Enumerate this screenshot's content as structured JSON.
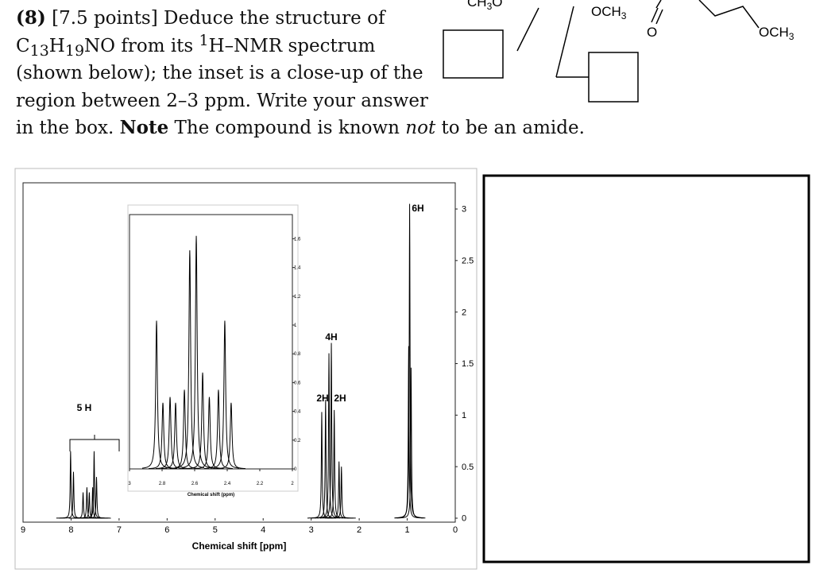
{
  "question": {
    "lines": [
      [
        {
          "t": "(8)",
          "style": "bold"
        },
        {
          "t": " [7.5 points] Deduce the structure of"
        }
      ],
      [
        {
          "t": "C"
        },
        {
          "t": "13",
          "style": "sub"
        },
        {
          "t": "H"
        },
        {
          "t": "19",
          "style": "sub"
        },
        {
          "t": "NO from its "
        },
        {
          "t": "1",
          "style": "sup"
        },
        {
          "t": "H–NMR spectrum"
        }
      ],
      [
        {
          "t": "(shown below); the inset is a close-up of the"
        }
      ],
      [
        {
          "t": "region between 2–3 ppm. Write your answer"
        }
      ],
      [
        {
          "t": "in the box. "
        },
        {
          "t": "Note",
          "style": "bold"
        },
        {
          "t": " The compound is known "
        },
        {
          "t": "not",
          "style": "italic"
        },
        {
          "t": " to be an amide."
        }
      ]
    ]
  },
  "structure_labels": [
    {
      "t": "CH",
      "sub": "3",
      "after": "O"
    },
    {
      "t": "OCH",
      "sub": "3",
      "after": ""
    },
    {
      "t": "O",
      "sub": "",
      "after": ""
    },
    {
      "t": "OCH",
      "sub": "3",
      "after": ""
    }
  ],
  "chart_data": {
    "type": "spectrum",
    "xlabel": "Chemical shift [ppm]",
    "xlim": [
      9,
      0
    ],
    "xticks": [
      9,
      8,
      7,
      6,
      5,
      4,
      3,
      2,
      1,
      0
    ],
    "ylim": [
      0,
      3.3
    ],
    "yticks": [
      0,
      0.5,
      1,
      1.5,
      2,
      2.5,
      3
    ],
    "annotations": [
      "5 H",
      "4H",
      "2H",
      "2H",
      "6H"
    ],
    "peaks": {
      "x": [
        8.01,
        7.95,
        7.75,
        7.67,
        7.62,
        7.55,
        7.52,
        7.47,
        2.78,
        2.7,
        2.63,
        2.58,
        2.52,
        2.42,
        2.37,
        0.97,
        0.95,
        0.92
      ],
      "values": [
        0.65,
        0.45,
        0.25,
        0.3,
        0.25,
        0.3,
        0.65,
        0.4,
        1.03,
        1.15,
        1.6,
        1.7,
        1.05,
        0.55,
        0.5,
        1.67,
        3.05,
        1.46
      ]
    },
    "inset": {
      "xlabel": "Chemical shift (ppm)",
      "xlim": [
        3,
        2
      ],
      "xticks": [
        3,
        2.8,
        2.6,
        2.4,
        2.2,
        2
      ],
      "ylim": [
        0,
        1.75
      ],
      "yticks": [
        0,
        0.2,
        0.4,
        0.6,
        0.8,
        1,
        1.2,
        1.4,
        1.6
      ],
      "peaks": {
        "x": [
          2.834,
          2.795,
          2.751,
          2.717,
          2.663,
          2.63,
          2.59,
          2.551,
          2.51,
          2.454,
          2.415,
          2.376
        ],
        "values": [
          1.03,
          0.46,
          0.5,
          0.46,
          0.55,
          1.52,
          1.62,
          0.67,
          0.5,
          0.55,
          1.03,
          0.46
        ]
      }
    }
  }
}
